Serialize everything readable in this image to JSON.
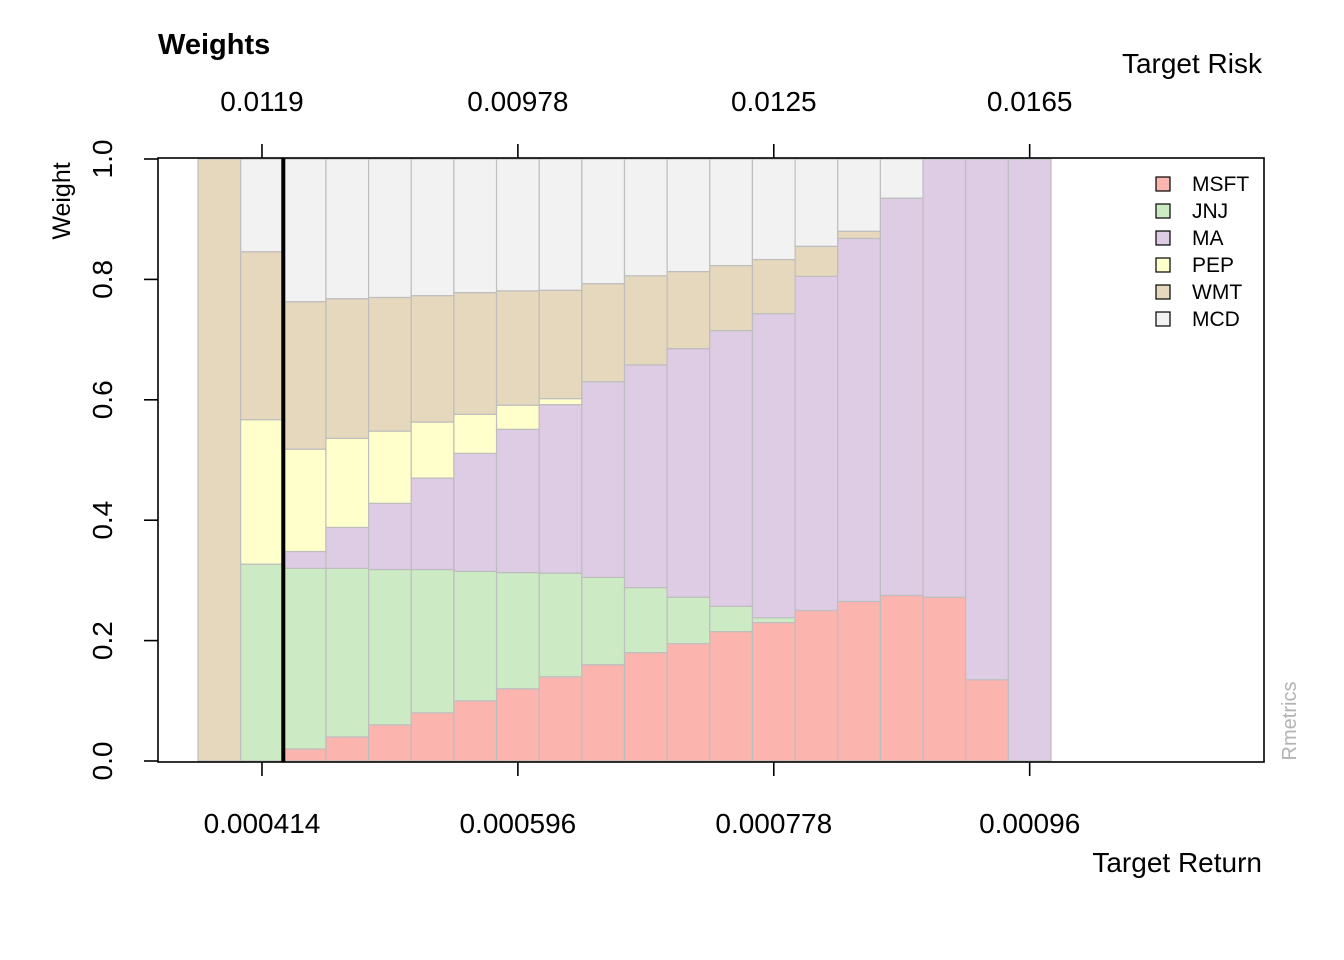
{
  "chart_data": {
    "type": "bar",
    "stacked": true,
    "title": "Weights",
    "ylabel": "Weight",
    "xlabel_bottom": "Target Return",
    "xlabel_top": "Target Risk",
    "ylim": [
      0,
      1
    ],
    "y_ticks": [
      "0.0",
      "0.2",
      "0.4",
      "0.6",
      "0.8",
      "1.0"
    ],
    "bottom_tick_labels": [
      "0.000414",
      "0.000596",
      "0.000778",
      "0.00096"
    ],
    "top_tick_labels": [
      "0.0119",
      "0.00978",
      "0.0125",
      "0.0165"
    ],
    "tick_bar_indices": [
      1,
      7,
      13,
      19
    ],
    "vertical_marker_bar_index": 1,
    "credit": "Rmetrics",
    "legend_position": "top-right",
    "series": [
      {
        "name": "MSFT",
        "color": "#FBB4AE",
        "values": [
          0,
          0,
          0.02,
          0.04,
          0.06,
          0.08,
          0.1,
          0.12,
          0.14,
          0.16,
          0.18,
          0.195,
          0.215,
          0.23,
          0.25,
          0.265,
          0.275,
          0.272,
          0.135,
          0
        ]
      },
      {
        "name": "JNJ",
        "color": "#CCEBC5",
        "values": [
          0,
          0.327,
          0.3,
          0.28,
          0.258,
          0.238,
          0.215,
          0.193,
          0.172,
          0.145,
          0.108,
          0.077,
          0.042,
          0.008,
          0,
          0,
          0,
          0,
          0,
          0
        ]
      },
      {
        "name": "MA",
        "color": "#DECBE4",
        "values": [
          0,
          0,
          0.028,
          0.068,
          0.11,
          0.152,
          0.196,
          0.238,
          0.28,
          0.325,
          0.37,
          0.413,
          0.458,
          0.505,
          0.555,
          0.603,
          0.66,
          0.728,
          0.865,
          1.0
        ]
      },
      {
        "name": "PEP",
        "color": "#FFFFCC",
        "values": [
          0,
          0.24,
          0.17,
          0.148,
          0.12,
          0.093,
          0.065,
          0.04,
          0.01,
          0,
          0,
          0,
          0,
          0,
          0,
          0,
          0,
          0,
          0,
          0
        ]
      },
      {
        "name": "WMT",
        "color": "#E5D8BD",
        "values": [
          1.0,
          0.279,
          0.245,
          0.232,
          0.222,
          0.21,
          0.202,
          0.19,
          0.18,
          0.163,
          0.148,
          0.128,
          0.108,
          0.09,
          0.05,
          0.012,
          0,
          0,
          0,
          0
        ]
      },
      {
        "name": "MCD",
        "color": "#F2F2F2",
        "values": [
          0,
          0.154,
          0.237,
          0.232,
          0.23,
          0.227,
          0.222,
          0.219,
          0.218,
          0.207,
          0.194,
          0.187,
          0.177,
          0.167,
          0.145,
          0.12,
          0.065,
          0,
          0,
          0
        ]
      }
    ]
  }
}
